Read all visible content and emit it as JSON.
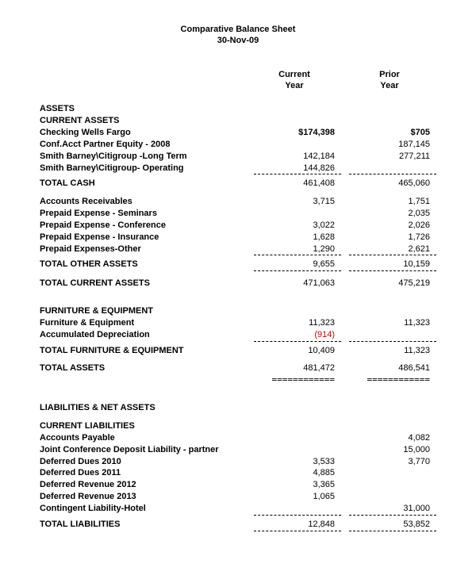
{
  "title_line1": "Comparative Balance Sheet",
  "title_line2": "30-Nov-09",
  "col_current_1": "Current",
  "col_current_2": "Year",
  "col_prior_1": "Prior",
  "col_prior_2": "Year",
  "sec_assets": "ASSETS",
  "sec_current_assets": "CURRENT ASSETS",
  "r_checking": {
    "label": "Checking Wells Fargo",
    "cur": "$174,398",
    "pri": "$705"
  },
  "r_confacct": {
    "label": "Conf.Acct Partner Equity - 2008",
    "cur": "",
    "pri": "187,145"
  },
  "r_sb_long": {
    "label": "Smith Barney\\Citigroup -Long Term",
    "cur": "142,184",
    "pri": "277,211"
  },
  "r_sb_oper": {
    "label": "Smith Barney\\Citigroup- Operating",
    "cur": "144,826",
    "pri": ""
  },
  "r_total_cash": {
    "label": "TOTAL CASH",
    "cur": "461,408",
    "pri": "465,060"
  },
  "r_ar": {
    "label": "Accounts Receivables",
    "cur": "3,715",
    "pri": "1,751"
  },
  "r_pe_sem": {
    "label": "Prepaid Expense - Seminars",
    "cur": "",
    "pri": "2,035"
  },
  "r_pe_conf": {
    "label": "Prepaid Expense - Conference",
    "cur": "3,022",
    "pri": "2,026"
  },
  "r_pe_ins": {
    "label": "Prepaid Expense - Insurance",
    "cur": "1,628",
    "pri": "1,726"
  },
  "r_pe_oth": {
    "label": "Prepaid Expenses-Other",
    "cur": "1,290",
    "pri": "2,621"
  },
  "r_total_other": {
    "label": "TOTAL OTHER ASSETS",
    "cur": "9,655",
    "pri": "10,159"
  },
  "r_total_cur_assets": {
    "label": "TOTAL CURRENT ASSETS",
    "cur": "471,063",
    "pri": "475,219"
  },
  "sec_furn": "FURNITURE & EQUIPMENT",
  "r_furn": {
    "label": "Furniture & Equipment",
    "cur": "11,323",
    "pri": "11,323"
  },
  "r_accdep": {
    "label": "Accumulated Depreciation",
    "cur": "(914)",
    "pri": ""
  },
  "r_total_furn": {
    "label": "TOTAL FURNITURE & EQUIPMENT",
    "cur": "10,409",
    "pri": "11,323"
  },
  "r_total_assets": {
    "label": "TOTAL ASSETS",
    "cur": "481,472",
    "pri": "486,541"
  },
  "sec_liab_net": "LIABILITIES & NET ASSETS",
  "sec_cur_liab": "CURRENT LIABILITIES",
  "r_ap": {
    "label": "Accounts Payable",
    "cur": "",
    "pri": "4,082"
  },
  "r_jcdl": {
    "label": "Joint Conference Deposit Liability - partner",
    "cur": "",
    "pri": "15,000"
  },
  "r_dd2010": {
    "label": "Deferred Dues 2010",
    "cur": "3,533",
    "pri": "3,770"
  },
  "r_dd2011": {
    "label": "Deferred Dues 2011",
    "cur": "4,885",
    "pri": ""
  },
  "r_dr2012": {
    "label": "Deferred Revenue 2012",
    "cur": "3,365",
    "pri": ""
  },
  "r_dr2013": {
    "label": "Deferred Revenue 2013",
    "cur": "1,065",
    "pri": ""
  },
  "r_contingent": {
    "label": "Contingent Liability-Hotel",
    "cur": "",
    "pri": "31,000"
  },
  "r_total_liab": {
    "label": "TOTAL LIABILITIES",
    "cur": "12,848",
    "pri": "53,852"
  },
  "dash": "-----------------------",
  "equals": "============",
  "colors": {
    "neg": "#d00000",
    "text": "#000000",
    "bg": "#ffffff"
  },
  "font_size_pt": 11
}
